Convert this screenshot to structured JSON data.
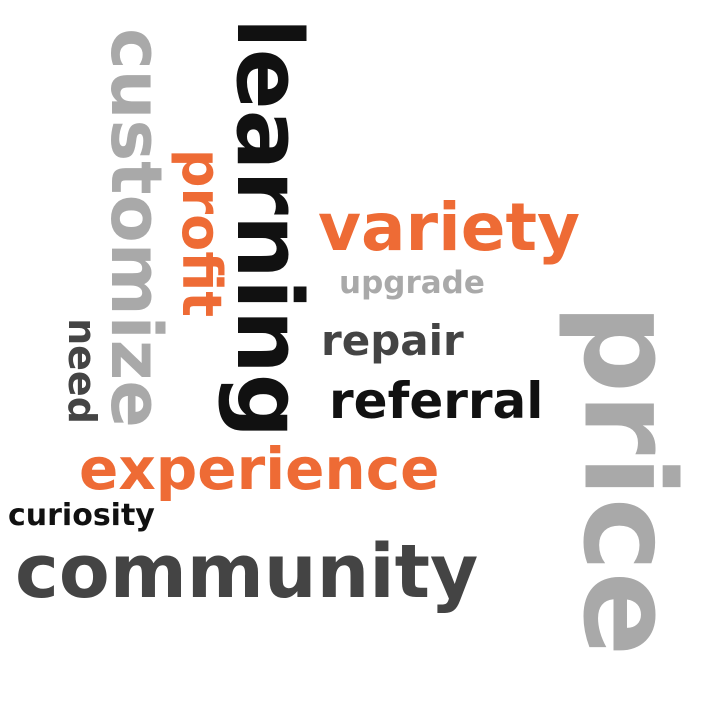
{
  "colors": {
    "orange": "#EE6B35",
    "light_gray": "#A9A9A9",
    "dark_gray": "#444444",
    "black": "#111111"
  },
  "words": {
    "customize": "customize",
    "learning": "learning",
    "profit": "profit",
    "variety": "variety",
    "upgrade": "upgrade",
    "repair": "repair",
    "price": "price",
    "need": "need",
    "referral": "referral",
    "experience": "experience",
    "curiosity": "curiosity",
    "community": "community"
  }
}
